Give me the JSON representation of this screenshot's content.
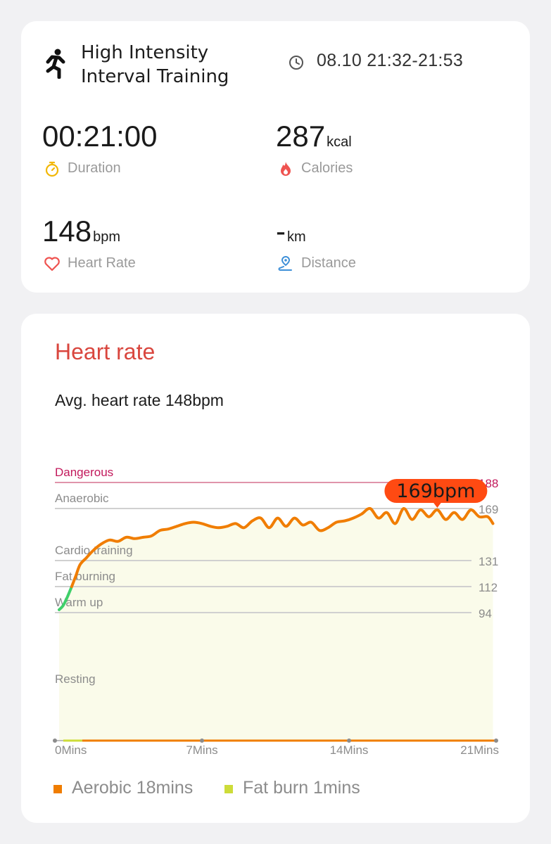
{
  "summary": {
    "workout_icon": "running-person-icon",
    "workout_title": "High Intensity Interval Training",
    "time_icon": "clock-icon",
    "time_range": "08.10 21:32-21:53",
    "stats": {
      "duration": {
        "value": "00:21:00",
        "unit": "",
        "label": "Duration",
        "icon": "stopwatch-icon",
        "icon_color": "#f2b705"
      },
      "calories": {
        "value": "287",
        "unit": "kcal",
        "label": "Calories",
        "icon": "flame-icon",
        "icon_color": "#ef5350"
      },
      "heart_rate": {
        "value": "148",
        "unit": "bpm",
        "label": "Heart Rate",
        "icon": "heart-icon",
        "icon_color": "#ef5350"
      },
      "distance": {
        "value": "-",
        "unit": "km",
        "label": "Distance",
        "icon": "location-pin-icon",
        "icon_color": "#3d8fd8"
      }
    }
  },
  "heart_rate_card": {
    "title": "Heart rate",
    "avg_text": "Avg. heart rate 148bpm",
    "legend": [
      {
        "label": "Aerobic 18mins",
        "color": "#f07d00"
      },
      {
        "label": "Fat burn 1mins",
        "color": "#cddc39"
      }
    ]
  },
  "chart_data": {
    "type": "line",
    "xlabel": "",
    "ylabel": "",
    "x_ticks": [
      {
        "value": 0,
        "label": "0Mins"
      },
      {
        "value": 7,
        "label": "7Mins"
      },
      {
        "value": 14,
        "label": "14Mins"
      },
      {
        "value": 21,
        "label": "21Mins"
      }
    ],
    "xlim": [
      0,
      21
    ],
    "zones": [
      {
        "name": "Dangerous",
        "threshold": 188,
        "color": "#c2185b"
      },
      {
        "name": "Anaerobic",
        "threshold": 169,
        "color": "#cccccc"
      },
      {
        "name": "Cardio training",
        "threshold": 131,
        "color": "#cccccc"
      },
      {
        "name": "Fat burning",
        "threshold": 112,
        "color": "#cccccc"
      },
      {
        "name": "Warm up",
        "threshold": 94,
        "color": "#cccccc"
      },
      {
        "name": "Resting",
        "threshold": null,
        "color": "#cccccc"
      }
    ],
    "peak_label": "169bpm",
    "peak": {
      "x": 18.2,
      "y": 169
    },
    "colors": {
      "line": "#f07d00",
      "warmup_line": "#3fcf6a",
      "fill": "#fafbea",
      "zone_bar_aerobic": "#f07d00",
      "zone_bar_fatburn": "#cddc39"
    },
    "series": [
      {
        "x": [
          0.2,
          0.4,
          0.6,
          0.8,
          1.0,
          1.2,
          1.5,
          1.8,
          2.2,
          2.6,
          3.0,
          3.4,
          3.8,
          4.2,
          4.6,
          5.0,
          5.4,
          5.8,
          6.2,
          6.6,
          7.0,
          7.4,
          7.8,
          8.2,
          8.6,
          9.0,
          9.4,
          9.8,
          10.2,
          10.6,
          11.0,
          11.4,
          11.8,
          12.2,
          12.6,
          13.0,
          13.4,
          13.8,
          14.2,
          14.6,
          15.0,
          15.4,
          15.8,
          16.2,
          16.6,
          17.0,
          17.4,
          17.8,
          18.2,
          18.6,
          19.0,
          19.4,
          19.8,
          20.2,
          20.6,
          20.85
        ],
        "y": [
          96,
          99,
          105,
          112,
          120,
          128,
          133,
          138,
          143,
          146,
          145,
          148,
          147,
          148,
          149,
          153,
          154,
          156,
          158,
          159,
          158,
          156,
          155,
          156,
          158,
          155,
          160,
          162,
          155,
          162,
          156,
          162,
          157,
          159,
          153,
          155,
          159,
          160,
          162,
          165,
          169,
          162,
          166,
          158,
          169,
          161,
          168,
          163,
          168,
          161,
          166,
          161,
          168,
          163,
          163,
          158
        ]
      }
    ]
  }
}
